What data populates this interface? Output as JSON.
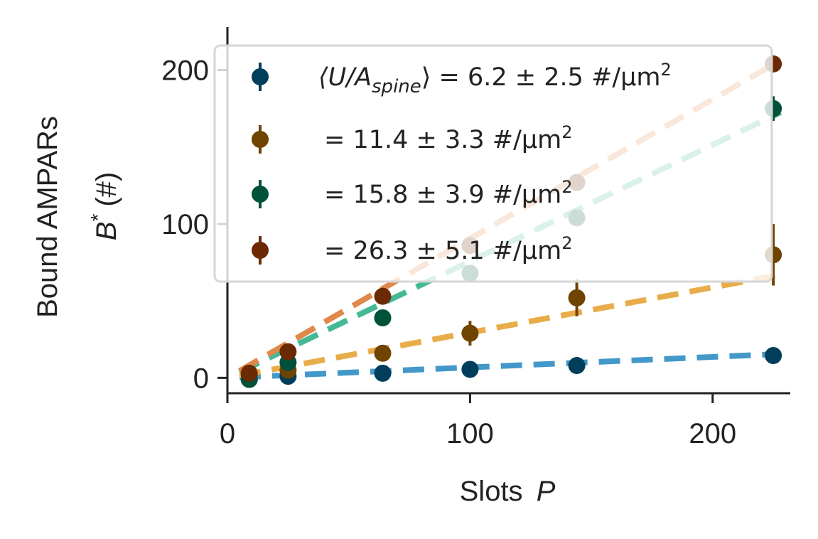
{
  "chart_data": {
    "type": "scatter",
    "xlabel": "Slots",
    "xlabel_var": "P",
    "ylabel_line1": "Bound AMPARs",
    "ylabel_var": "B",
    "ylabel_sup": "*",
    "ylabel_unit": "(#)",
    "xlim": [
      0,
      232
    ],
    "ylim": [
      -10,
      228
    ],
    "xticks": [
      0,
      100,
      200
    ],
    "yticks": [
      0,
      100,
      200
    ],
    "grid": false,
    "legend_position": "top",
    "legend": [
      {
        "prefix": "⟨U/A",
        "sub": "spine",
        "suffix": "⟩ = 6.2 ± 2.5 #/μm",
        "sup": "2"
      },
      {
        "prefix": "",
        "sub": "",
        "suffix": "= 11.4 ± 3.3 #/μm",
        "sup": "2"
      },
      {
        "prefix": "",
        "sub": "",
        "suffix": "= 15.8 ± 3.9 #/μm",
        "sup": "2"
      },
      {
        "prefix": "",
        "sub": "",
        "suffix": "= 26.3 ± 5.1 #/μm",
        "sup": "2"
      }
    ],
    "series": [
      {
        "marker_color": "#003e5c",
        "line_color": "#4398c9",
        "x": [
          9,
          25,
          64,
          100,
          144,
          225
        ],
        "y": [
          -1,
          1,
          3,
          5.5,
          8,
          14.5
        ],
        "err": [
          1,
          1,
          1,
          1.5,
          2,
          2.5
        ],
        "fit_slope": 0.068
      },
      {
        "marker_color": "#6f4300",
        "line_color": "#e8ad4a",
        "x": [
          9,
          25,
          64,
          100,
          144,
          225
        ],
        "y": [
          2,
          5,
          16,
          29,
          52,
          80
        ],
        "err": [
          1.5,
          3,
          5,
          8,
          12,
          20
        ],
        "fit_slope": 0.294
      },
      {
        "marker_color": "#00513a",
        "line_color": "#45b995",
        "x": [
          9,
          25,
          64,
          100,
          144,
          225
        ],
        "y": [
          -1,
          10,
          39,
          68,
          104,
          175
        ],
        "err": [
          1,
          2,
          3,
          4,
          5,
          8
        ],
        "fit_slope": 0.757
      },
      {
        "marker_color": "#6b2a04",
        "line_color": "#e0884a",
        "x": [
          9,
          25,
          64,
          100,
          144,
          225
        ],
        "y": [
          3,
          17,
          53,
          86,
          127,
          204
        ],
        "err": [
          1,
          2,
          3,
          4,
          5,
          5
        ],
        "fit_slope": 0.905
      }
    ]
  }
}
